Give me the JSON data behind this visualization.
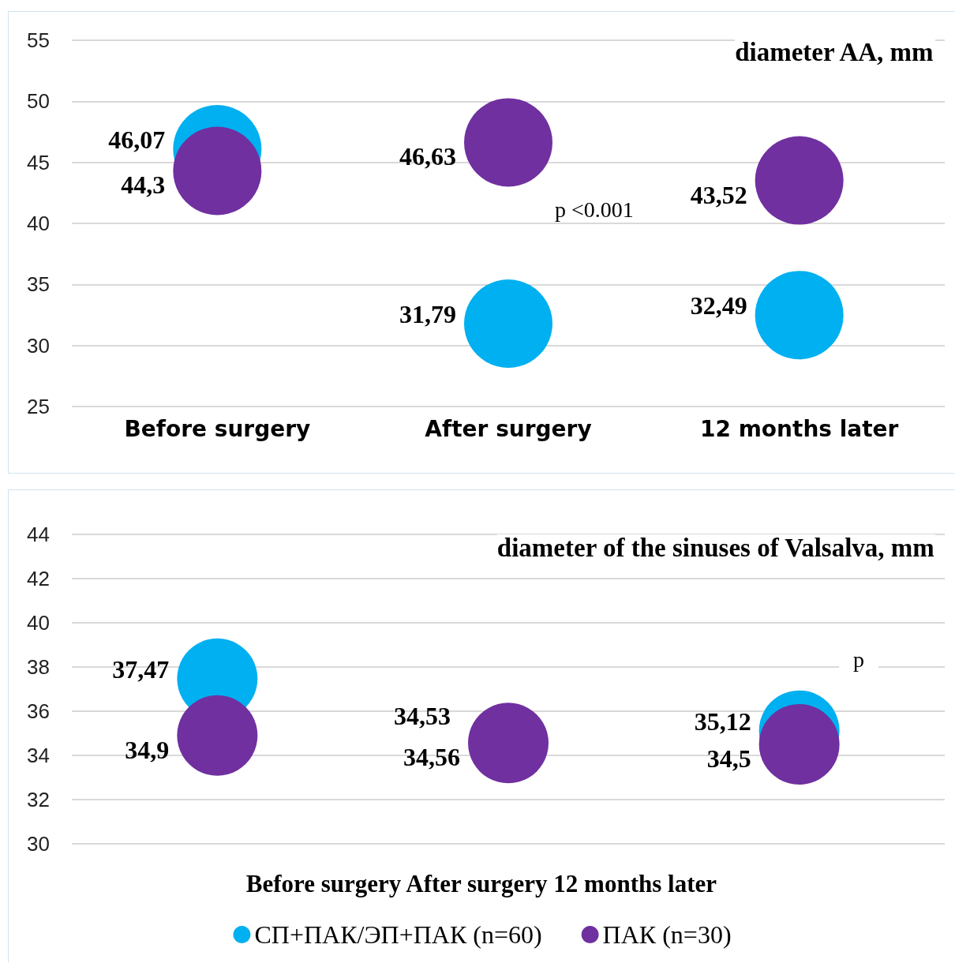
{
  "chart_data": [
    {
      "type": "scatter",
      "title": "diameter AA, mm",
      "categories": [
        "Before surgery",
        "After surgery",
        "12 months later"
      ],
      "series": [
        {
          "color": "#00b0f0",
          "values": [
            46.07,
            31.79,
            32.49
          ],
          "value_labels": [
            "46,07",
            "31,79",
            "32,49"
          ]
        },
        {
          "color": "#7030a0",
          "values": [
            44.3,
            46.63,
            43.52
          ],
          "value_labels": [
            "44,3",
            "46,63",
            "43,52"
          ]
        }
      ],
      "ylim": [
        25,
        55
      ],
      "yticks": [
        25,
        30,
        35,
        40,
        45,
        50,
        55
      ],
      "grid": "y",
      "legend": false,
      "marker": "circle",
      "annotations": [
        "p <0.001"
      ]
    },
    {
      "type": "scatter",
      "title": "diameter of the sinuses of Valsalva, mm",
      "categories": [
        null,
        null,
        null
      ],
      "xlabel": "Before surgery After surgery 12 months later",
      "series": [
        {
          "name": "СП+ПАК/ЭП+ПАК (n=60)",
          "color": "#00b0f0",
          "values": [
            37.47,
            null,
            35.12
          ],
          "value_labels": [
            "37,47",
            null,
            "35,12"
          ]
        },
        {
          "name": "ПАК (n=30)",
          "color": "#7030a0",
          "values": [
            34.9,
            34.56,
            34.5
          ],
          "value_labels": [
            "34,9",
            "34,56",
            "34,5"
          ]
        }
      ],
      "ylim": [
        30,
        44
      ],
      "yticks": [
        30,
        32,
        34,
        36,
        38,
        40,
        42,
        44
      ],
      "grid": "y",
      "legend": "bottom",
      "marker": "circle",
      "annotations": [
        "p",
        "34,53"
      ]
    }
  ]
}
